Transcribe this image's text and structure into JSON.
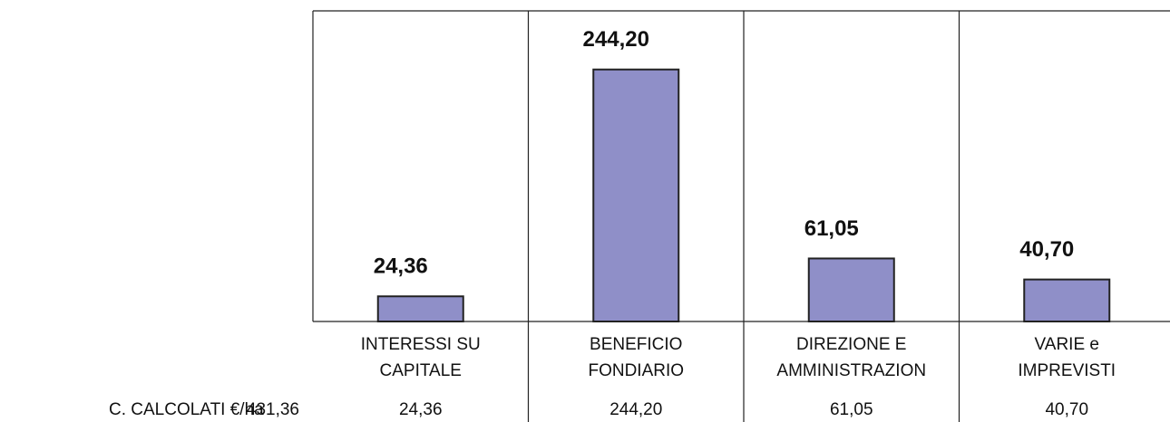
{
  "chart_data": {
    "type": "bar",
    "categories": [
      "INTERESSI SU\nCAPITALE",
      "BENEFICIO\nFONDIARIO",
      "DIREZIONE E\nAMMINISTRAZION",
      "VARIE e\nIMPREVISTI"
    ],
    "values": [
      24.36,
      244.2,
      61.05,
      40.7
    ],
    "value_labels": [
      "24,36",
      "244,20",
      "61,05",
      "40,70"
    ],
    "color": "#8f8fc8",
    "ylim": [
      0,
      301
    ],
    "table": {
      "label": "C. CALCOLATI €/ha",
      "total": 431.36,
      "total_label": "431,36"
    }
  }
}
